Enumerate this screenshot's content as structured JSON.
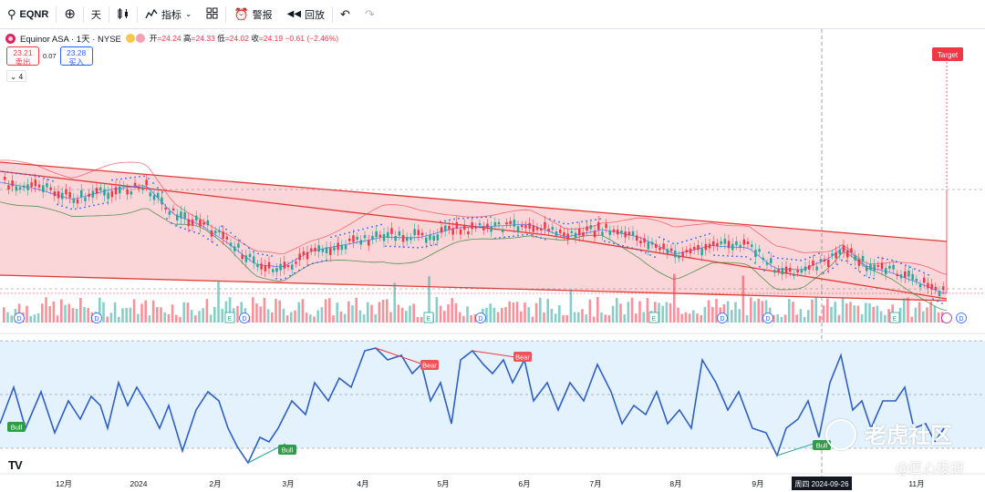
{
  "toolbar": {
    "symbol": "EQNR",
    "interval": "天",
    "indicators_label": "指标",
    "alert_label": "警报",
    "replay_label": "回放"
  },
  "legend": {
    "name": "Equinor ASA · 1天 · NYSE",
    "open_label": "开",
    "open": "24.24",
    "high_label": "高",
    "high": "24.33",
    "low_label": "低",
    "low": "24.02",
    "close_label": "收",
    "close": "24.19",
    "change": "−0.61 (−2.46%)",
    "sell_price": "23.21",
    "sell_label": "卖出",
    "spread": "0.07",
    "buy_price": "23.28",
    "buy_label": "买入",
    "collapsed_count": "4"
  },
  "chart": {
    "target_label": "Target",
    "crosshair_date": "周四 2024-09-26",
    "x_ticks": [
      "12月",
      "2024",
      "2月",
      "3月",
      "4月",
      "5月",
      "6月",
      "7月",
      "8月",
      "9月",
      "11月"
    ],
    "signals": [
      "Bull",
      "Bull",
      "Bear",
      "Bear",
      "Bull"
    ],
    "event_markers": [
      "D",
      "D",
      "E",
      "D",
      "E",
      "D",
      "E",
      "D",
      "D",
      "E",
      "D"
    ],
    "watermark_main": "老虎社区",
    "watermark_sub": "@匠心投研",
    "colors": {
      "up": "#26a69a",
      "down": "#f23645",
      "channel_fill": "#f8c5c8",
      "bb_upper": "#f23645",
      "bb_lower": "#2e7d32",
      "basis": "#2962ff",
      "oscillator": "#2f5fc4",
      "osc_bg": "#e3f2fd"
    }
  },
  "icons": [
    "search-icon",
    "add-icon",
    "indicators-icon",
    "layout-icon",
    "alert-icon",
    "replay-icon",
    "undo-icon",
    "redo-icon",
    "tradingview-logo"
  ]
}
